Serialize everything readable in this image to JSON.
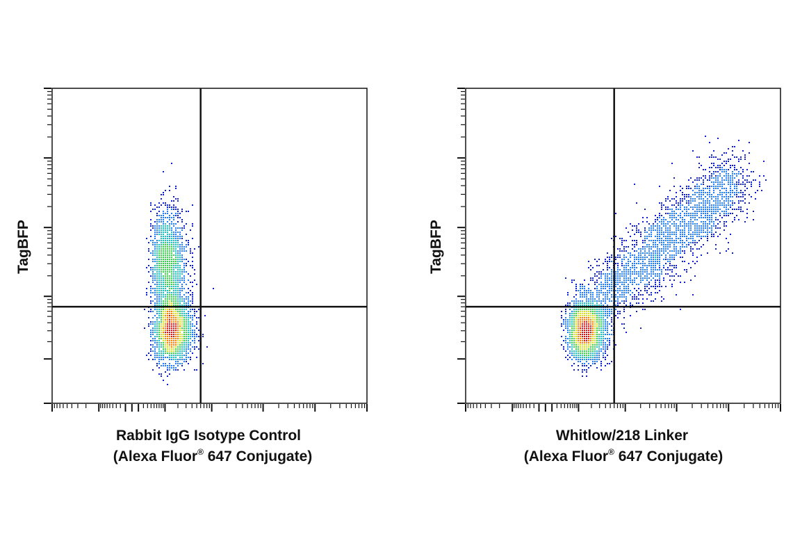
{
  "chart_data": [
    {
      "type": "scatter",
      "subtype": "flow-cytometry-density-plot",
      "ylabel": "TagBFP",
      "xlabel_line1": "Rabbit IgG Isotype Control",
      "xlabel_line2_pre": "(Alexa Fluor",
      "xlabel_line2_sup": "®",
      "xlabel_line2_post": " 647 Conjugate)",
      "x_scale": "log",
      "y_scale": "log",
      "xlim": [
        -1000,
        1000000
      ],
      "ylim": [
        0,
        1000000
      ],
      "gate": {
        "x": 600,
        "y": 700
      },
      "populations": [
        {
          "name": "negative",
          "cx": 150,
          "cy": 300,
          "spread_x": 0.45,
          "spread_y": 0.55,
          "count": 2200
        },
        {
          "name": "low-blue",
          "cx": 120,
          "cy": 3000,
          "spread_x": 0.45,
          "spread_y": 0.8,
          "count": 1600
        }
      ],
      "colors": [
        "#0a1cd6",
        "#1e7bff",
        "#19c2c2",
        "#35d24a",
        "#d8e024",
        "#ff7a00",
        "#e01010"
      ]
    },
    {
      "type": "scatter",
      "subtype": "flow-cytometry-density-plot",
      "ylabel": "TagBFP",
      "xlabel_line1": "Whitlow/218 Linker",
      "xlabel_line2_pre": "(Alexa Fluor",
      "xlabel_line2_sup": "®",
      "xlabel_line2_post": " 647 Conjugate)",
      "x_scale": "log",
      "y_scale": "log",
      "xlim": [
        -1000,
        1000000
      ],
      "ylim": [
        0,
        1000000
      ],
      "gate": {
        "x": 600,
        "y": 700
      },
      "populations": [
        {
          "name": "negative",
          "cx": 150,
          "cy": 300,
          "spread_x": 0.45,
          "spread_y": 0.5,
          "count": 2400
        },
        {
          "name": "diagonal",
          "x_from": 300,
          "x_to": 150000,
          "y_from": 800,
          "y_to": 50000,
          "spread": 0.25,
          "count": 2600
        }
      ],
      "colors": [
        "#0a1cd6",
        "#1e7bff",
        "#19c2c2",
        "#35d24a",
        "#d8e024",
        "#ff7a00",
        "#e01010"
      ]
    }
  ]
}
